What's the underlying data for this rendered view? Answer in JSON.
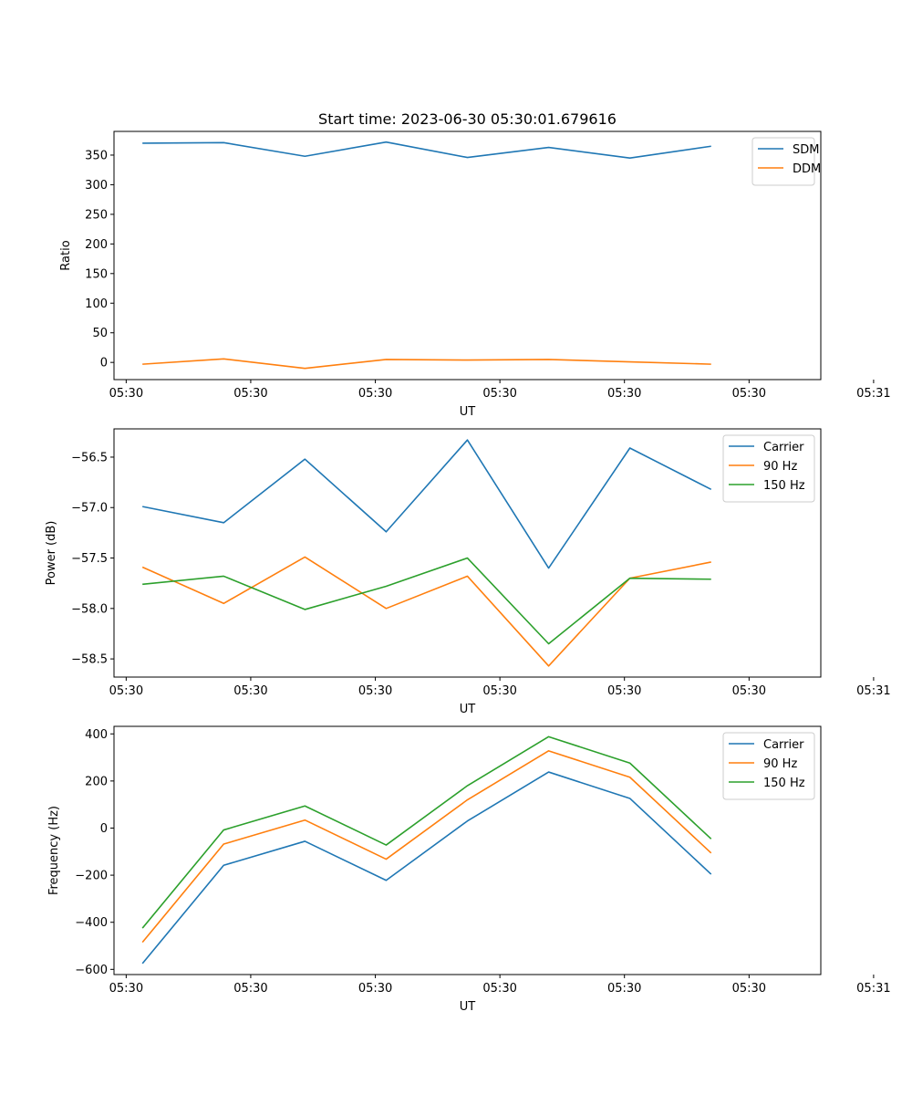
{
  "title": "Start time: 2023-06-30 05:30:01.679616",
  "colors": {
    "blue": "#1f77b4",
    "orange": "#ff7f0e",
    "green": "#2ca02c"
  },
  "chart_data": [
    {
      "type": "line",
      "title": "Start time: 2023-06-30 05:30:01.679616",
      "xlabel": "UT",
      "ylabel": "Ratio",
      "x": [
        1,
        2,
        3,
        4,
        5,
        6,
        7,
        8
      ],
      "xticks": [
        {
          "value": 0.8,
          "label": "05:30"
        },
        {
          "value": 2.333,
          "label": "05:30"
        },
        {
          "value": 3.867,
          "label": "05:30"
        },
        {
          "value": 5.4,
          "label": "05:30"
        },
        {
          "value": 6.933,
          "label": "05:30"
        },
        {
          "value": 8.467,
          "label": "05:30"
        },
        {
          "value": 10.0,
          "label": "05:31"
        }
      ],
      "xlim": [
        0.65,
        9.35
      ],
      "ylim": [
        -29,
        390
      ],
      "yticks": [
        0,
        50,
        100,
        150,
        200,
        250,
        300,
        350
      ],
      "legend": "upper right",
      "series": [
        {
          "name": "SDM",
          "color": "#1f77b4",
          "values": [
            370,
            371,
            348,
            372,
            346,
            363,
            345,
            365
          ]
        },
        {
          "name": "DDM",
          "color": "#ff7f0e",
          "values": [
            -3,
            6,
            -10,
            5,
            4,
            5,
            1,
            -3
          ]
        }
      ]
    },
    {
      "type": "line",
      "title": "",
      "xlabel": "UT",
      "ylabel": "Power (dB)",
      "x": [
        1,
        2,
        3,
        4,
        5,
        6,
        7,
        8
      ],
      "xticks": [
        {
          "value": 0.8,
          "label": "05:30"
        },
        {
          "value": 2.333,
          "label": "05:30"
        },
        {
          "value": 3.867,
          "label": "05:30"
        },
        {
          "value": 5.4,
          "label": "05:30"
        },
        {
          "value": 6.933,
          "label": "05:30"
        },
        {
          "value": 8.467,
          "label": "05:30"
        },
        {
          "value": 10.0,
          "label": "05:31"
        }
      ],
      "xlim": [
        0.65,
        9.35
      ],
      "ylim": [
        -58.68,
        -56.22
      ],
      "yticks": [
        -58.5,
        -58.0,
        -57.5,
        -57.0,
        -56.5
      ],
      "ytick_labels": [
        "−58.5",
        "−58.0",
        "−57.5",
        "−57.0",
        "−56.5"
      ],
      "legend": "upper right",
      "series": [
        {
          "name": "Carrier",
          "color": "#1f77b4",
          "values": [
            -56.99,
            -57.15,
            -56.52,
            -57.24,
            -56.33,
            -57.6,
            -56.41,
            -56.82
          ]
        },
        {
          "name": "90 Hz",
          "color": "#ff7f0e",
          "values": [
            -57.59,
            -57.95,
            -57.49,
            -58.0,
            -57.68,
            -58.57,
            -57.7,
            -57.54
          ]
        },
        {
          "name": "150 Hz",
          "color": "#2ca02c",
          "values": [
            -57.76,
            -57.68,
            -58.01,
            -57.78,
            -57.5,
            -58.35,
            -57.7,
            -57.71
          ]
        }
      ]
    },
    {
      "type": "line",
      "title": "",
      "xlabel": "UT",
      "ylabel": "Frequency (Hz)",
      "x": [
        1,
        2,
        3,
        4,
        5,
        6,
        7,
        8
      ],
      "xticks": [
        {
          "value": 0.8,
          "label": "05:30"
        },
        {
          "value": 2.333,
          "label": "05:30"
        },
        {
          "value": 3.867,
          "label": "05:30"
        },
        {
          "value": 5.4,
          "label": "05:30"
        },
        {
          "value": 6.933,
          "label": "05:30"
        },
        {
          "value": 8.467,
          "label": "05:30"
        },
        {
          "value": 10.0,
          "label": "05:31"
        }
      ],
      "xlim": [
        0.65,
        9.35
      ],
      "ylim": [
        -622,
        432
      ],
      "yticks": [
        -600,
        -400,
        -200,
        0,
        200,
        400
      ],
      "ytick_labels": [
        "−600",
        "−400",
        "−200",
        "0",
        "200",
        "400"
      ],
      "legend": "upper right",
      "series": [
        {
          "name": "Carrier",
          "color": "#1f77b4",
          "values": [
            -575,
            -158,
            -56,
            -222,
            30,
            238,
            126,
            -196
          ]
        },
        {
          "name": "90 Hz",
          "color": "#ff7f0e",
          "values": [
            -485,
            -68,
            34,
            -132,
            120,
            328,
            216,
            -106
          ]
        },
        {
          "name": "150 Hz",
          "color": "#2ca02c",
          "values": [
            -425,
            -8,
            94,
            -72,
            180,
            388,
            276,
            -46
          ]
        }
      ]
    }
  ]
}
